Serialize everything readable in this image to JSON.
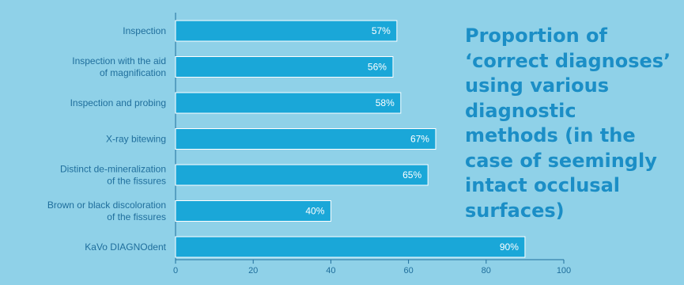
{
  "colors": {
    "background": "#8fd1e8",
    "bar": "#1aa7d8",
    "bar_outline": "#ffffff",
    "label_text": "#1f6e9c",
    "title_text": "#1b8ec6"
  },
  "chart_data": {
    "type": "bar",
    "orientation": "horizontal",
    "title": "Proportion of ‘correct diagnoses’ using various diagnostic methods (in the case of seemingly intact occlusal surfaces)",
    "categories": [
      "Inspection",
      "Inspection with the aid of magnification",
      "Inspection and probing",
      "X-ray bitewing",
      "Distinct de-mineralization of the fissures",
      "Brown or black discoloration of the fissures",
      "KaVo DIAGNOdent"
    ],
    "category_lines": [
      [
        "Inspection"
      ],
      [
        "Inspection with the aid",
        "of magnification"
      ],
      [
        "Inspection and probing"
      ],
      [
        "X-ray bitewing"
      ],
      [
        "Distinct de-mineralization",
        "of the fissures"
      ],
      [
        "Brown or black discoloration",
        "of the fissures"
      ],
      [
        "KaVo DIAGNOdent"
      ]
    ],
    "values": [
      57,
      56,
      58,
      67,
      65,
      40,
      90
    ],
    "data_labels": [
      "57%",
      "56%",
      "58%",
      "67%",
      "65%",
      "40%",
      "90%"
    ],
    "xlim": [
      0,
      100
    ],
    "xticks": [
      0,
      20,
      40,
      60,
      80,
      100
    ],
    "grid": false,
    "legend": "none"
  }
}
